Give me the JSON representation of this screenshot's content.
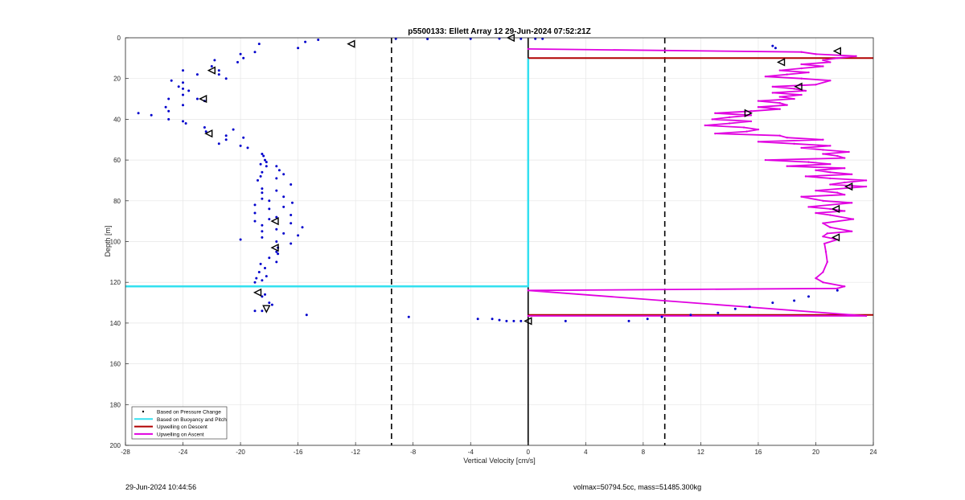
{
  "chart_data": {
    "type": "scatter",
    "title": "p5500133: Ellett Array 12 29-Jun-2024 07:52:21Z",
    "xlabel": "Vertical Velocity [cm/s]",
    "ylabel": "Depth [m]",
    "xlim": [
      -28,
      24
    ],
    "ylim": [
      0,
      200
    ],
    "y_reversed": true,
    "grid": true,
    "xticks": [
      "-28",
      "-24",
      "-20",
      "-16",
      "-12",
      "-8",
      "-4",
      "0",
      "4",
      "8",
      "12",
      "16",
      "20",
      "24"
    ],
    "yticks": [
      "0",
      "20",
      "40",
      "60",
      "80",
      "100",
      "120",
      "140",
      "160",
      "180",
      "200"
    ],
    "legend_position": "bottom-left",
    "legend": [
      {
        "label": "Based on Pressure Change",
        "color": "#000000",
        "style": "dot"
      },
      {
        "label": "Based on Buoyancy and Pitch",
        "color": "#33e0f0",
        "style": "line"
      },
      {
        "label": "Upwelling on Descent",
        "color": "#b00000",
        "style": "line"
      },
      {
        "label": "Upwelling on Ascent",
        "color": "#e000e0",
        "style": "line"
      }
    ],
    "reference_lines": {
      "dashed_x": [
        -9.5,
        9.5
      ],
      "zero_x": 0
    },
    "series": [
      {
        "name": "Based on Pressure Change",
        "kind": "scatter",
        "color": "#0000cc",
        "points": [
          [
            -15.5,
            2
          ],
          [
            -16,
            5
          ],
          [
            -18.7,
            3
          ],
          [
            -19,
            7
          ],
          [
            -20,
            8
          ],
          [
            -14.6,
            1
          ],
          [
            -9.2,
            0.5
          ],
          [
            -7,
            0.6
          ],
          [
            -4,
            0.5
          ],
          [
            -2,
            0.4
          ],
          [
            -0.5,
            0.5
          ],
          [
            0.5,
            0.5
          ],
          [
            1,
            0.5
          ],
          [
            -19.8,
            10
          ],
          [
            -20.2,
            12
          ],
          [
            -21.8,
            11
          ],
          [
            -22,
            14
          ],
          [
            -21.5,
            16
          ],
          [
            -21.5,
            18
          ],
          [
            -24,
            16
          ],
          [
            -21,
            20
          ],
          [
            -23,
            18
          ],
          [
            -24.8,
            21
          ],
          [
            -24,
            22
          ],
          [
            -24.3,
            24
          ],
          [
            -24,
            25
          ],
          [
            -23.6,
            26
          ],
          [
            -24,
            28
          ],
          [
            -25,
            30
          ],
          [
            -23,
            30
          ],
          [
            -22.5,
            31
          ],
          [
            -24,
            33
          ],
          [
            -25.2,
            34
          ],
          [
            -25,
            36
          ],
          [
            -27.1,
            37
          ],
          [
            -26.2,
            38
          ],
          [
            -25,
            40
          ],
          [
            -24,
            41
          ],
          [
            -23.8,
            42
          ],
          [
            -22.5,
            44
          ],
          [
            -22.4,
            46
          ],
          [
            -20.5,
            45
          ],
          [
            -21,
            48
          ],
          [
            -19.8,
            49
          ],
          [
            -21,
            50
          ],
          [
            -21.5,
            52
          ],
          [
            -20,
            53
          ],
          [
            -19.5,
            54
          ],
          [
            -18.5,
            57
          ],
          [
            -18.4,
            58
          ],
          [
            -18.3,
            60
          ],
          [
            -18.2,
            61
          ],
          [
            -18.6,
            62
          ],
          [
            -18.2,
            63
          ],
          [
            -17.5,
            63
          ],
          [
            -17.3,
            65
          ],
          [
            -18.5,
            66
          ],
          [
            -17,
            67
          ],
          [
            -18.6,
            68
          ],
          [
            -17.5,
            69
          ],
          [
            -18.8,
            70
          ],
          [
            -16.5,
            72
          ],
          [
            -18.5,
            74
          ],
          [
            -17.5,
            75
          ],
          [
            -18.5,
            76
          ],
          [
            -17,
            78
          ],
          [
            -18.5,
            79
          ],
          [
            -18,
            80
          ],
          [
            -16.4,
            81
          ],
          [
            -19,
            82
          ],
          [
            -17,
            83
          ],
          [
            -18,
            84
          ],
          [
            -19,
            86
          ],
          [
            -16.5,
            87
          ],
          [
            -17.5,
            88
          ],
          [
            -18,
            89
          ],
          [
            -19,
            90
          ],
          [
            -16.5,
            91
          ],
          [
            -18.5,
            92
          ],
          [
            -15.7,
            93
          ],
          [
            -17.5,
            94
          ],
          [
            -18.5,
            95
          ],
          [
            -17,
            96
          ],
          [
            -16,
            97
          ],
          [
            -18.5,
            98
          ],
          [
            -20,
            99
          ],
          [
            -17.5,
            100
          ],
          [
            -16.5,
            101
          ],
          [
            -17.4,
            103
          ],
          [
            -17.5,
            105
          ],
          [
            -17.4,
            106
          ],
          [
            -18,
            108
          ],
          [
            -17.5,
            110
          ],
          [
            -18.6,
            111
          ],
          [
            -18.3,
            113
          ],
          [
            -18.7,
            115
          ],
          [
            -18.2,
            117
          ],
          [
            -18.9,
            118
          ],
          [
            -18.5,
            119
          ],
          [
            -19,
            120
          ],
          [
            -18.3,
            126
          ],
          [
            -18.5,
            127
          ],
          [
            -18,
            130
          ],
          [
            -17.8,
            131
          ],
          [
            -18.5,
            134
          ],
          [
            -19,
            134
          ],
          [
            -15.4,
            136
          ],
          [
            -8.3,
            137
          ],
          [
            -3.5,
            138
          ],
          [
            -2.5,
            138
          ],
          [
            -2,
            138.5
          ],
          [
            -1.5,
            139
          ],
          [
            -1,
            139
          ],
          [
            -0.5,
            139
          ],
          [
            2.6,
            139
          ],
          [
            7,
            139
          ],
          [
            8.3,
            138
          ],
          [
            9.3,
            137
          ],
          [
            11.3,
            136
          ],
          [
            13.2,
            135
          ],
          [
            14.4,
            133
          ],
          [
            15.4,
            132
          ],
          [
            17,
            130
          ],
          [
            18.5,
            129
          ],
          [
            19.5,
            127
          ],
          [
            21.5,
            124
          ],
          [
            17,
            4
          ],
          [
            17.2,
            5
          ]
        ]
      },
      {
        "name": "Based on Buoyancy and Pitch",
        "kind": "line",
        "color": "#33e0f0",
        "points": [
          [
            0,
            10
          ],
          [
            0,
            122
          ],
          [
            -28,
            122
          ]
        ]
      },
      {
        "name": "Upwelling on Descent",
        "kind": "line",
        "color": "#b00000",
        "segments": [
          [
            [
              0,
              10
            ],
            [
              24,
              10
            ]
          ],
          [
            [
              0,
              136
            ],
            [
              24,
              136
            ]
          ]
        ]
      },
      {
        "name": "Upwelling on Ascent",
        "kind": "line",
        "color": "#e000e0",
        "points": [
          [
            0,
            136.5
          ],
          [
            23.5,
            136.5
          ],
          [
            0,
            124
          ],
          [
            21.5,
            123
          ],
          [
            22,
            122
          ],
          [
            20.5,
            120
          ],
          [
            20,
            118
          ],
          [
            20.5,
            115
          ],
          [
            20.8,
            110
          ],
          [
            20.7,
            105
          ],
          [
            20.6,
            101
          ],
          [
            21.5,
            99
          ],
          [
            20.5,
            97.5
          ],
          [
            20.8,
            96
          ],
          [
            22.5,
            95
          ],
          [
            21,
            93
          ],
          [
            20.5,
            91
          ],
          [
            22.6,
            89
          ],
          [
            21,
            87
          ],
          [
            20,
            86
          ],
          [
            22,
            85
          ],
          [
            21,
            84
          ],
          [
            19.5,
            83
          ],
          [
            22.5,
            81
          ],
          [
            20.5,
            80
          ],
          [
            19,
            78
          ],
          [
            22,
            77
          ],
          [
            21.5,
            76
          ],
          [
            20,
            75
          ],
          [
            23.5,
            73
          ],
          [
            21,
            72
          ],
          [
            22,
            71
          ],
          [
            23.5,
            70
          ],
          [
            21,
            69
          ],
          [
            19.3,
            68
          ],
          [
            22.5,
            67
          ],
          [
            21,
            66
          ],
          [
            20,
            65
          ],
          [
            22,
            64
          ],
          [
            18,
            63
          ],
          [
            21,
            62
          ],
          [
            19.5,
            61
          ],
          [
            16.5,
            60
          ],
          [
            22,
            59
          ],
          [
            21.5,
            58
          ],
          [
            20.5,
            57
          ],
          [
            22.3,
            56
          ],
          [
            20.5,
            55
          ],
          [
            19,
            54
          ],
          [
            21,
            53
          ],
          [
            18.5,
            52
          ],
          [
            16,
            51
          ],
          [
            20.5,
            50
          ],
          [
            18,
            49
          ],
          [
            17.5,
            48
          ],
          [
            13,
            47
          ],
          [
            15.2,
            46
          ],
          [
            16,
            45
          ],
          [
            15,
            44
          ],
          [
            12.3,
            43
          ],
          [
            14,
            42
          ],
          [
            15.5,
            41
          ],
          [
            12.8,
            40
          ],
          [
            14,
            39
          ],
          [
            15.5,
            38
          ],
          [
            13,
            37
          ],
          [
            15.5,
            36
          ],
          [
            17.5,
            35
          ],
          [
            16,
            34
          ],
          [
            18,
            33
          ],
          [
            17.5,
            32
          ],
          [
            16,
            31
          ],
          [
            18.5,
            30
          ],
          [
            17.5,
            29
          ],
          [
            19,
            28
          ],
          [
            17,
            27
          ],
          [
            19.3,
            26
          ],
          [
            18.5,
            25
          ],
          [
            17,
            24
          ],
          [
            20,
            23
          ],
          [
            21,
            21
          ],
          [
            19,
            20
          ],
          [
            16.5,
            19
          ],
          [
            18,
            18
          ],
          [
            19.5,
            17
          ],
          [
            17.5,
            16
          ],
          [
            19,
            15
          ],
          [
            20.5,
            14
          ],
          [
            19,
            13
          ],
          [
            21,
            12
          ],
          [
            20.5,
            11
          ],
          [
            21.5,
            10
          ],
          [
            22.8,
            9
          ],
          [
            20,
            8
          ],
          [
            19,
            7
          ],
          [
            0,
            5.5
          ]
        ]
      }
    ],
    "markers": [
      {
        "x": -12.3,
        "y": 3,
        "dir": "left"
      },
      {
        "x": -22,
        "y": 16,
        "dir": "left"
      },
      {
        "x": -22.6,
        "y": 30,
        "dir": "left"
      },
      {
        "x": -22.2,
        "y": 47,
        "dir": "left"
      },
      {
        "x": -17.6,
        "y": 90,
        "dir": "left"
      },
      {
        "x": -17.6,
        "y": 103,
        "dir": "left"
      },
      {
        "x": -18.8,
        "y": 125,
        "dir": "left"
      },
      {
        "x": -18.2,
        "y": 133,
        "dir": "down"
      },
      {
        "x": -1.2,
        "y": 0,
        "dir": "left"
      },
      {
        "x": 0,
        "y": 139,
        "dir": "left"
      },
      {
        "x": 21.5,
        "y": 6.5,
        "dir": "left"
      },
      {
        "x": 17.6,
        "y": 12,
        "dir": "left"
      },
      {
        "x": 18.8,
        "y": 24,
        "dir": "left"
      },
      {
        "x": 15.3,
        "y": 37,
        "dir": "right"
      },
      {
        "x": 22.3,
        "y": 73,
        "dir": "left"
      },
      {
        "x": 21.4,
        "y": 84,
        "dir": "left"
      },
      {
        "x": 21.4,
        "y": 98,
        "dir": "left"
      }
    ]
  },
  "footer": {
    "timestamp": "29-Jun-2024 10:44:56",
    "volmax": "volmax=50794.5cc, mass=51485.300kg"
  }
}
